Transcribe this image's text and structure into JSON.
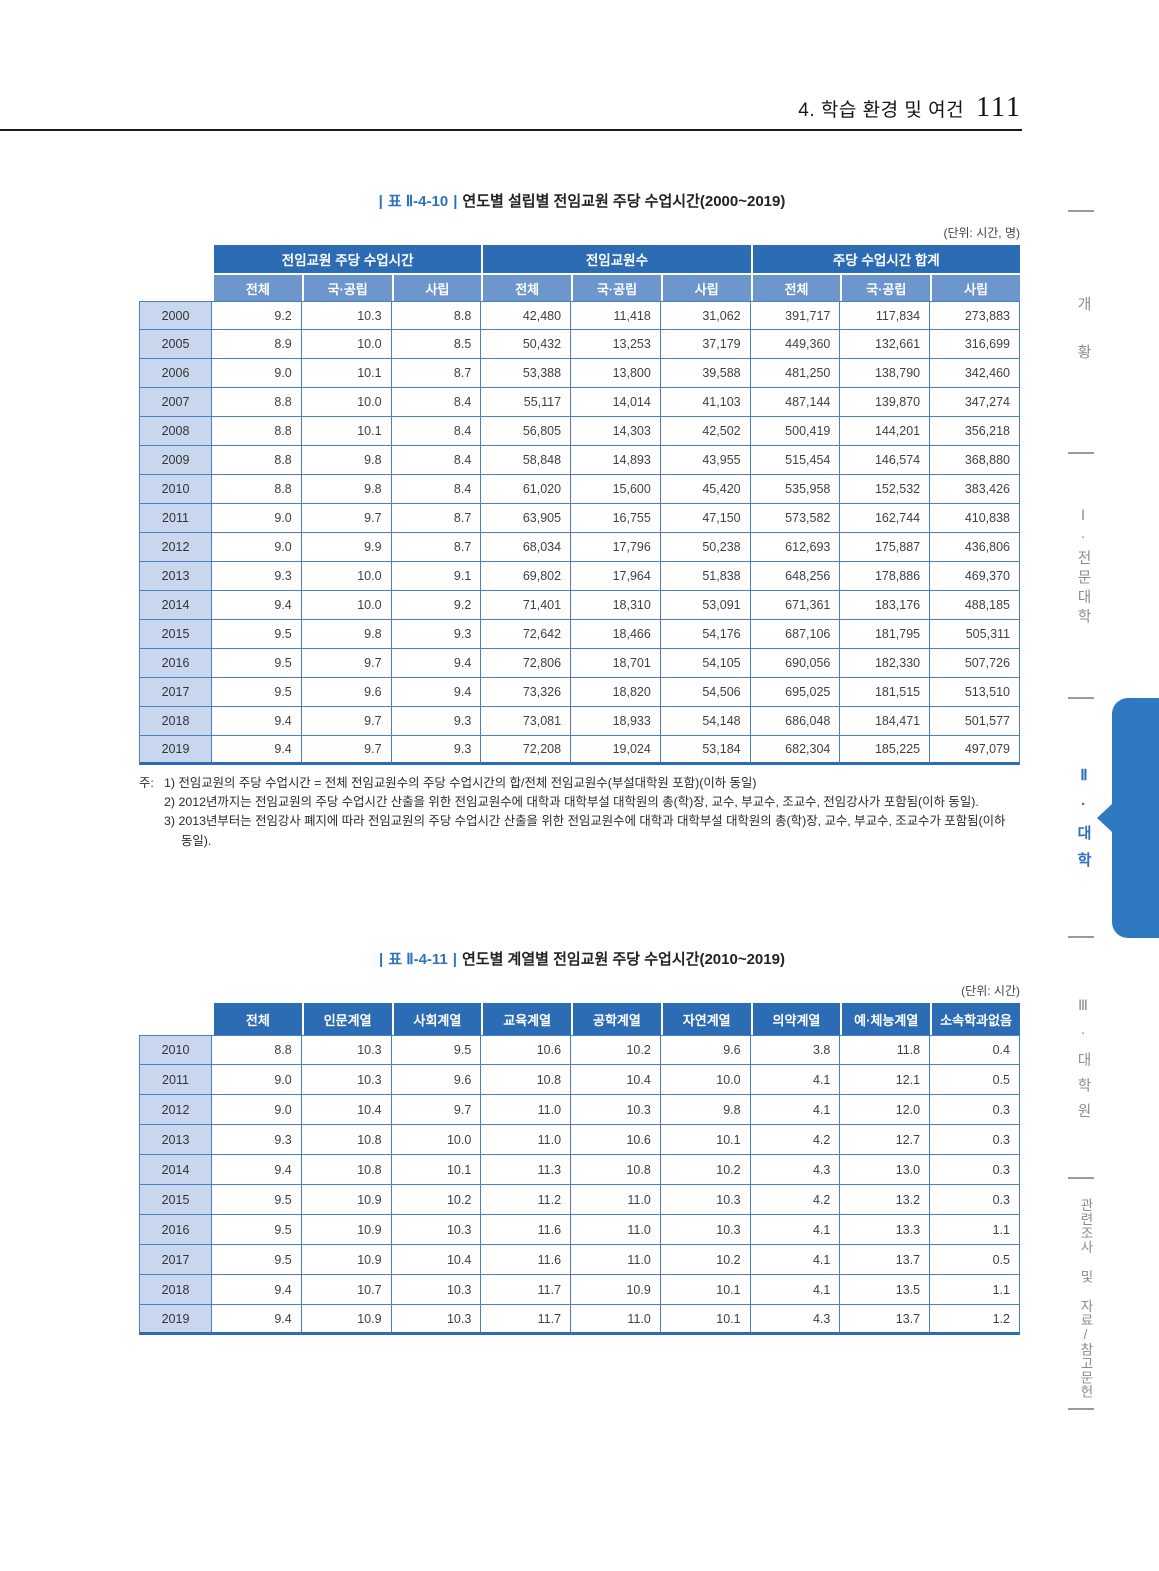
{
  "page": {
    "header": {
      "section": "4. 학습 환경 및 여건",
      "page_number": "111"
    },
    "sidebar": {
      "items": [
        {
          "label": "개황",
          "active": false
        },
        {
          "label": "Ⅰ·전문대학",
          "active": false
        },
        {
          "label": "Ⅱ·대학",
          "active": true
        },
        {
          "label": "Ⅲ·대학원",
          "active": false
        },
        {
          "label": "관련조사 및 자료/참고문헌",
          "active": false
        }
      ]
    },
    "colors": {
      "header_dark_blue": "#2c6cb4",
      "header_light_blue": "#6d96cd",
      "year_cell_blue": "#c9d7ee",
      "grid_blue": "#4a80c2",
      "accent_blue": "#2d72c0",
      "active_tab_blue": "#2e79c0"
    }
  },
  "table1": {
    "label": "표 Ⅱ-4-10",
    "title": "연도별 설립별 전임교원 주당 수업시간(2000~2019)",
    "unit": "(단위: 시간, 명)",
    "col_groups": [
      "전임교원 주당 수업시간",
      "전임교원수",
      "주당 수업시간 합계"
    ],
    "sub_columns": [
      "전체",
      "국·공립",
      "사립",
      "전체",
      "국·공립",
      "사립",
      "전체",
      "국·공립",
      "사립"
    ],
    "rows": [
      {
        "year": "2000",
        "values": [
          "9.2",
          "10.3",
          "8.8",
          "42,480",
          "11,418",
          "31,062",
          "391,717",
          "117,834",
          "273,883"
        ]
      },
      {
        "year": "2005",
        "values": [
          "8.9",
          "10.0",
          "8.5",
          "50,432",
          "13,253",
          "37,179",
          "449,360",
          "132,661",
          "316,699"
        ]
      },
      {
        "year": "2006",
        "values": [
          "9.0",
          "10.1",
          "8.7",
          "53,388",
          "13,800",
          "39,588",
          "481,250",
          "138,790",
          "342,460"
        ]
      },
      {
        "year": "2007",
        "values": [
          "8.8",
          "10.0",
          "8.4",
          "55,117",
          "14,014",
          "41,103",
          "487,144",
          "139,870",
          "347,274"
        ]
      },
      {
        "year": "2008",
        "values": [
          "8.8",
          "10.1",
          "8.4",
          "56,805",
          "14,303",
          "42,502",
          "500,419",
          "144,201",
          "356,218"
        ]
      },
      {
        "year": "2009",
        "values": [
          "8.8",
          "9.8",
          "8.4",
          "58,848",
          "14,893",
          "43,955",
          "515,454",
          "146,574",
          "368,880"
        ]
      },
      {
        "year": "2010",
        "values": [
          "8.8",
          "9.8",
          "8.4",
          "61,020",
          "15,600",
          "45,420",
          "535,958",
          "152,532",
          "383,426"
        ]
      },
      {
        "year": "2011",
        "values": [
          "9.0",
          "9.7",
          "8.7",
          "63,905",
          "16,755",
          "47,150",
          "573,582",
          "162,744",
          "410,838"
        ]
      },
      {
        "year": "2012",
        "values": [
          "9.0",
          "9.9",
          "8.7",
          "68,034",
          "17,796",
          "50,238",
          "612,693",
          "175,887",
          "436,806"
        ]
      },
      {
        "year": "2013",
        "values": [
          "9.3",
          "10.0",
          "9.1",
          "69,802",
          "17,964",
          "51,838",
          "648,256",
          "178,886",
          "469,370"
        ]
      },
      {
        "year": "2014",
        "values": [
          "9.4",
          "10.0",
          "9.2",
          "71,401",
          "18,310",
          "53,091",
          "671,361",
          "183,176",
          "488,185"
        ]
      },
      {
        "year": "2015",
        "values": [
          "9.5",
          "9.8",
          "9.3",
          "72,642",
          "18,466",
          "54,176",
          "687,106",
          "181,795",
          "505,311"
        ]
      },
      {
        "year": "2016",
        "values": [
          "9.5",
          "9.7",
          "9.4",
          "72,806",
          "18,701",
          "54,105",
          "690,056",
          "182,330",
          "507,726"
        ]
      },
      {
        "year": "2017",
        "values": [
          "9.5",
          "9.6",
          "9.4",
          "73,326",
          "18,820",
          "54,506",
          "695,025",
          "181,515",
          "513,510"
        ]
      },
      {
        "year": "2018",
        "values": [
          "9.4",
          "9.7",
          "9.3",
          "73,081",
          "18,933",
          "54,148",
          "686,048",
          "184,471",
          "501,577"
        ]
      },
      {
        "year": "2019",
        "values": [
          "9.4",
          "9.7",
          "9.3",
          "72,208",
          "19,024",
          "53,184",
          "682,304",
          "185,225",
          "497,079"
        ]
      }
    ],
    "notes": {
      "prefix": "주:",
      "items": [
        "1) 전임교원의 주당 수업시간 = 전체 전임교원수의 주당 수업시간의 합/전체 전임교원수(부설대학원 포함)(이하 동일)",
        "2) 2012년까지는 전임교원의 주당 수업시간 산출을 위한 전임교원수에 대학과 대학부설 대학원의 총(학)장, 교수, 부교수, 조교수, 전임강사가 포함됨(이하 동일).",
        "3) 2013년부터는 전임강사 폐지에 따라 전임교원의 주당 수업시간 산출을 위한 전임교원수에 대학과 대학부설 대학원의 총(학)장, 교수, 부교수, 조교수가 포함됨(이하 동일)."
      ]
    }
  },
  "table2": {
    "label": "표 Ⅱ-4-11",
    "title": "연도별 계열별 전임교원 주당 수업시간(2010~2019)",
    "unit": "(단위: 시간)",
    "columns": [
      "전체",
      "인문계열",
      "사회계열",
      "교육계열",
      "공학계열",
      "자연계열",
      "의약계열",
      "예·체능계열",
      "소속학과없음"
    ],
    "rows": [
      {
        "year": "2010",
        "values": [
          "8.8",
          "10.3",
          "9.5",
          "10.6",
          "10.2",
          "9.6",
          "3.8",
          "11.8",
          "0.4"
        ]
      },
      {
        "year": "2011",
        "values": [
          "9.0",
          "10.3",
          "9.6",
          "10.8",
          "10.4",
          "10.0",
          "4.1",
          "12.1",
          "0.5"
        ]
      },
      {
        "year": "2012",
        "values": [
          "9.0",
          "10.4",
          "9.7",
          "11.0",
          "10.3",
          "9.8",
          "4.1",
          "12.0",
          "0.3"
        ]
      },
      {
        "year": "2013",
        "values": [
          "9.3",
          "10.8",
          "10.0",
          "11.0",
          "10.6",
          "10.1",
          "4.2",
          "12.7",
          "0.3"
        ]
      },
      {
        "year": "2014",
        "values": [
          "9.4",
          "10.8",
          "10.1",
          "11.3",
          "10.8",
          "10.2",
          "4.3",
          "13.0",
          "0.3"
        ]
      },
      {
        "year": "2015",
        "values": [
          "9.5",
          "10.9",
          "10.2",
          "11.2",
          "11.0",
          "10.3",
          "4.2",
          "13.2",
          "0.3"
        ]
      },
      {
        "year": "2016",
        "values": [
          "9.5",
          "10.9",
          "10.3",
          "11.6",
          "11.0",
          "10.3",
          "4.1",
          "13.3",
          "1.1"
        ]
      },
      {
        "year": "2017",
        "values": [
          "9.5",
          "10.9",
          "10.4",
          "11.6",
          "11.0",
          "10.2",
          "4.1",
          "13.7",
          "0.5"
        ]
      },
      {
        "year": "2018",
        "values": [
          "9.4",
          "10.7",
          "10.3",
          "11.7",
          "10.9",
          "10.1",
          "4.1",
          "13.5",
          "1.1"
        ]
      },
      {
        "year": "2019",
        "values": [
          "9.4",
          "10.9",
          "10.3",
          "11.7",
          "11.0",
          "10.1",
          "4.3",
          "13.7",
          "1.2"
        ]
      }
    ]
  }
}
